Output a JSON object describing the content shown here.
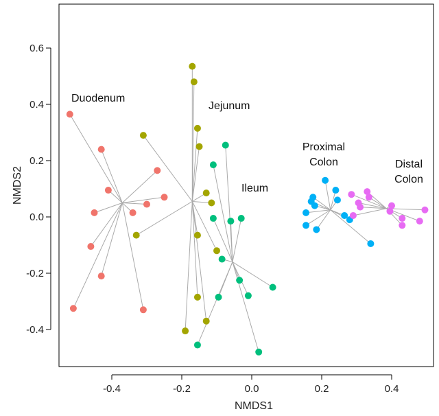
{
  "chart_data": {
    "type": "scatter",
    "title": "",
    "xlabel": "NMDS1",
    "ylabel": "NMDS2",
    "xlim": [
      -0.54,
      0.5
    ],
    "ylim": [
      -0.52,
      0.75
    ],
    "x_ticks": [
      -0.4,
      -0.2,
      0.0,
      0.2,
      0.4
    ],
    "x_tick_labels": [
      "-0.4",
      "-0.2",
      "0.0",
      "0.2",
      "0.4"
    ],
    "y_ticks": [
      -0.4,
      -0.2,
      0.0,
      0.2,
      0.4,
      0.6
    ],
    "y_tick_labels": [
      "-0.4",
      "-0.2",
      "0.0",
      "0.2",
      "0.4",
      "0.6"
    ],
    "grid": false,
    "legend": "none",
    "series": [
      {
        "name": "Duodenum",
        "color": "#F0746B",
        "label_lines": [
          "Duodenum"
        ],
        "centroid": [
          -0.37,
          0.05
        ],
        "points": [
          [
            -0.52,
            0.365
          ],
          [
            -0.43,
            0.24
          ],
          [
            -0.41,
            0.095
          ],
          [
            -0.45,
            0.015
          ],
          [
            -0.46,
            -0.105
          ],
          [
            -0.43,
            -0.21
          ],
          [
            -0.51,
            -0.325
          ],
          [
            -0.34,
            0.015
          ],
          [
            -0.3,
            0.045
          ],
          [
            -0.27,
            0.165
          ],
          [
            -0.25,
            0.07
          ],
          [
            -0.31,
            -0.33
          ]
        ]
      },
      {
        "name": "Jejunum",
        "color": "#A3A500",
        "label_lines": [
          "Jejunum"
        ],
        "centroid": [
          -0.17,
          0.055
        ],
        "points": [
          [
            -0.17,
            0.535
          ],
          [
            -0.165,
            0.48
          ],
          [
            -0.155,
            0.315
          ],
          [
            -0.15,
            0.25
          ],
          [
            -0.31,
            0.29
          ],
          [
            -0.13,
            0.085
          ],
          [
            -0.115,
            0.05
          ],
          [
            -0.33,
            -0.065
          ],
          [
            -0.155,
            -0.065
          ],
          [
            -0.1,
            -0.12
          ],
          [
            -0.155,
            -0.285
          ],
          [
            -0.13,
            -0.37
          ],
          [
            -0.19,
            -0.405
          ]
        ]
      },
      {
        "name": "Ileum",
        "color": "#00BF7D",
        "label_lines": [
          "Ileum"
        ],
        "centroid": [
          -0.055,
          -0.16
        ],
        "points": [
          [
            -0.075,
            0.255
          ],
          [
            -0.11,
            0.185
          ],
          [
            -0.11,
            -0.005
          ],
          [
            -0.06,
            -0.015
          ],
          [
            -0.03,
            -0.005
          ],
          [
            -0.085,
            -0.15
          ],
          [
            -0.035,
            -0.225
          ],
          [
            -0.01,
            -0.28
          ],
          [
            -0.095,
            -0.285
          ],
          [
            0.06,
            -0.25
          ],
          [
            -0.155,
            -0.455
          ],
          [
            0.02,
            -0.48
          ]
        ]
      },
      {
        "name": "Proximal Colon",
        "color": "#00B0F6",
        "label_lines": [
          "Proximal",
          "Colon"
        ],
        "centroid": [
          0.225,
          0.025
        ],
        "points": [
          [
            0.21,
            0.13
          ],
          [
            0.24,
            0.095
          ],
          [
            0.175,
            0.07
          ],
          [
            0.17,
            0.055
          ],
          [
            0.245,
            0.06
          ],
          [
            0.18,
            0.04
          ],
          [
            0.155,
            0.015
          ],
          [
            0.265,
            0.005
          ],
          [
            0.28,
            -0.01
          ],
          [
            0.155,
            -0.03
          ],
          [
            0.185,
            -0.045
          ],
          [
            0.34,
            -0.095
          ]
        ]
      },
      {
        "name": "Distal Colon",
        "color": "#E76BF3",
        "label_lines": [
          "Distal",
          "Colon"
        ],
        "centroid": [
          0.385,
          0.03
        ],
        "points": [
          [
            0.33,
            0.09
          ],
          [
            0.285,
            0.08
          ],
          [
            0.335,
            0.07
          ],
          [
            0.305,
            0.05
          ],
          [
            0.31,
            0.035
          ],
          [
            0.4,
            0.04
          ],
          [
            0.395,
            0.02
          ],
          [
            0.495,
            0.025
          ],
          [
            0.29,
            0.005
          ],
          [
            0.43,
            -0.005
          ],
          [
            0.48,
            -0.015
          ],
          [
            0.43,
            -0.03
          ]
        ]
      }
    ]
  }
}
